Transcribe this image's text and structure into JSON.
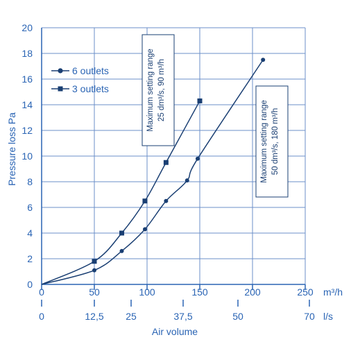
{
  "chart_data": {
    "type": "line",
    "ylabel": "Pressure loss Pa",
    "xlabel": "Air volume",
    "ylim": [
      0,
      20
    ],
    "yticks": [
      "0",
      "2",
      "4",
      "6",
      "8",
      "10",
      "12",
      "14",
      "16",
      "18",
      "20"
    ],
    "xlim_m3h": [
      0,
      250
    ],
    "xticks_m3h": [
      "0",
      "50",
      "100",
      "150",
      "200",
      "250"
    ],
    "xunit_m3h": "m³/h",
    "xticks_ls": [
      "0",
      "12,5",
      "25",
      "37,5",
      "50",
      "70"
    ],
    "xunit_ls": "l/s",
    "grid": true,
    "legend_position": "top-left",
    "series": [
      {
        "name": "6 outlets",
        "marker": "circle",
        "points": [
          [
            0,
            0
          ],
          [
            50,
            1.1
          ],
          [
            76,
            2.6
          ],
          [
            98,
            4.3
          ],
          [
            118,
            6.5
          ],
          [
            138,
            8.1
          ],
          [
            148,
            9.8
          ],
          [
            210,
            17.5
          ]
        ]
      },
      {
        "name": "3 outlets",
        "marker": "square",
        "points": [
          [
            0,
            0
          ],
          [
            50,
            1.8
          ],
          [
            76,
            4.0
          ],
          [
            98,
            6.5
          ],
          [
            118,
            9.5
          ],
          [
            150,
            14.3
          ]
        ]
      }
    ],
    "annotations": [
      {
        "text": "Maximum setting range\n25 dm³/s, 90 m³/h"
      },
      {
        "text": "Maximum setting range\n50 dm³/s, 180 m³/h"
      }
    ]
  },
  "colors": {
    "blue": "#1f5aa6",
    "grid": "#6b8fc9",
    "text": "#2a64b4",
    "curve": "#1a3f73"
  }
}
